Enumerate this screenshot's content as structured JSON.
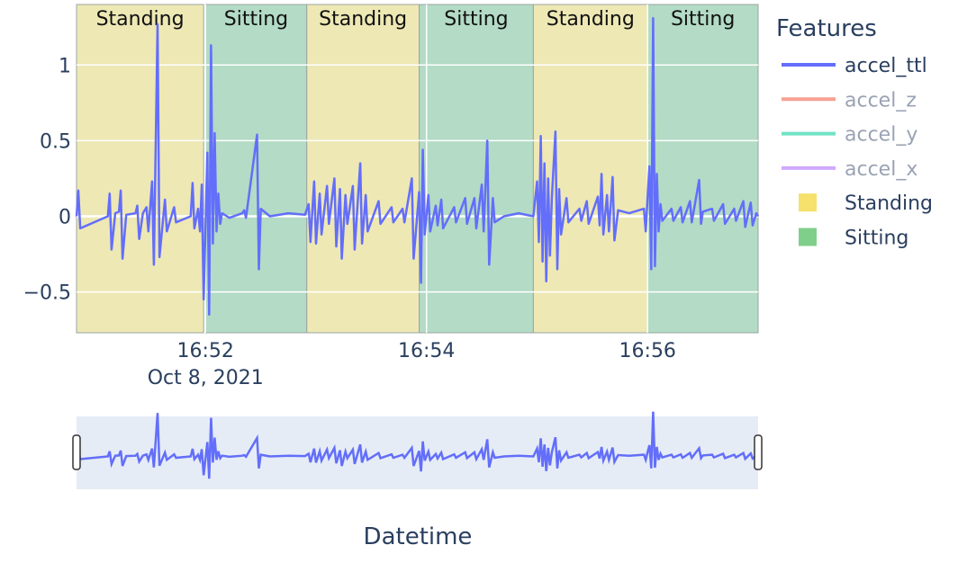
{
  "chart_data": {
    "type": "line",
    "x_unit": "datetime",
    "xlim": [
      "2021-10-08 16:50:50",
      "2021-10-08 16:57:00"
    ],
    "ylim": [
      -0.77,
      1.4
    ],
    "y_ticks": [
      {
        "value": -0.5,
        "label": "−0.5"
      },
      {
        "value": 0,
        "label": "0"
      },
      {
        "value": 0.5,
        "label": "0.5"
      },
      {
        "value": 1,
        "label": "1"
      }
    ],
    "x_ticks": [
      {
        "value": "2021-10-08 16:52:00",
        "label": "16:52",
        "sublabel": "Oct 8, 2021"
      },
      {
        "value": "2021-10-08 16:54:00",
        "label": "16:54",
        "sublabel": ""
      },
      {
        "value": "2021-10-08 16:56:00",
        "label": "16:56",
        "sublabel": ""
      }
    ],
    "xlabel": "Datetime",
    "ylabel": "",
    "grid": true,
    "legend_position": "right",
    "legend_title": "Features",
    "legend": [
      {
        "name": "accel_ttl",
        "kind": "line",
        "color": "#636efa",
        "visible": true
      },
      {
        "name": "accel_z",
        "kind": "line",
        "color": "#ef553b",
        "visible": false
      },
      {
        "name": "accel_y",
        "kind": "line",
        "color": "#00cc96",
        "visible": false
      },
      {
        "name": "accel_x",
        "kind": "line",
        "color": "#ab63fa",
        "visible": false
      },
      {
        "name": "Standing",
        "kind": "box",
        "color": "#f5e16c",
        "visible": true
      },
      {
        "name": "Sitting",
        "kind": "box",
        "color": "#7fcf8a",
        "visible": true
      }
    ],
    "regions": [
      {
        "label": "Standing",
        "start": "2021-10-08 16:50:50",
        "end": "2021-10-08 16:51:59",
        "color": "#eee8b5"
      },
      {
        "label": "Sitting",
        "start": "2021-10-08 16:52:00",
        "end": "2021-10-08 16:52:55",
        "color": "#b3dbc5"
      },
      {
        "label": "Standing",
        "start": "2021-10-08 16:52:55",
        "end": "2021-10-08 16:53:56",
        "color": "#eee8b5"
      },
      {
        "label": "Sitting",
        "start": "2021-10-08 16:53:56",
        "end": "2021-10-08 16:54:58",
        "color": "#b3dbc5"
      },
      {
        "label": "Standing",
        "start": "2021-10-08 16:54:58",
        "end": "2021-10-08 16:56:00",
        "color": "#eee8b5"
      },
      {
        "label": "Sitting",
        "start": "2021-10-08 16:56:00",
        "end": "2021-10-08 16:57:00",
        "color": "#b3dbc5"
      }
    ],
    "series": [
      {
        "name": "accel_ttl",
        "color": "#636efa",
        "points": [
          [
            "2021-10-08 16:50:50",
            0.0
          ],
          [
            "2021-10-08 16:50:51",
            0.17
          ],
          [
            "2021-10-08 16:50:52",
            -0.08
          ],
          [
            "2021-10-08 16:51:07",
            0.0
          ],
          [
            "2021-10-08 16:51:08",
            0.15
          ],
          [
            "2021-10-08 16:51:09",
            -0.22
          ],
          [
            "2021-10-08 16:51:11",
            0.02
          ],
          [
            "2021-10-08 16:51:13",
            0.03
          ],
          [
            "2021-10-08 16:51:14",
            0.17
          ],
          [
            "2021-10-08 16:51:15",
            -0.28
          ],
          [
            "2021-10-08 16:51:17",
            0.01
          ],
          [
            "2021-10-08 16:51:22",
            0.02
          ],
          [
            "2021-10-08 16:51:23",
            0.07
          ],
          [
            "2021-10-08 16:51:24",
            -0.15
          ],
          [
            "2021-10-08 16:51:26",
            0.02
          ],
          [
            "2021-10-08 16:51:28",
            0.06
          ],
          [
            "2021-10-08 16:51:29",
            -0.1
          ],
          [
            "2021-10-08 16:51:31",
            0.23
          ],
          [
            "2021-10-08 16:51:32",
            -0.32
          ],
          [
            "2021-10-08 16:51:34",
            1.27
          ],
          [
            "2021-10-08 16:51:35",
            -0.27
          ],
          [
            "2021-10-08 16:51:38",
            0.11
          ],
          [
            "2021-10-08 16:51:39",
            -0.1
          ],
          [
            "2021-10-08 16:51:43",
            0.06
          ],
          [
            "2021-10-08 16:51:44",
            -0.04
          ],
          [
            "2021-10-08 16:51:52",
            0.0
          ],
          [
            "2021-10-08 16:51:53",
            0.22
          ],
          [
            "2021-10-08 16:51:54",
            -0.08
          ],
          [
            "2021-10-08 16:51:56",
            0.05
          ],
          [
            "2021-10-08 16:51:57",
            -0.1
          ],
          [
            "2021-10-08 16:51:58",
            0.21
          ],
          [
            "2021-10-08 16:51:59",
            -0.55
          ],
          [
            "2021-10-08 16:52:01",
            0.42
          ],
          [
            "2021-10-08 16:52:02",
            -0.65
          ],
          [
            "2021-10-08 16:52:03",
            1.13
          ],
          [
            "2021-10-08 16:52:04",
            -0.18
          ],
          [
            "2021-10-08 16:52:05",
            0.55
          ],
          [
            "2021-10-08 16:52:06",
            -0.1
          ],
          [
            "2021-10-08 16:52:07",
            0.15
          ],
          [
            "2021-10-08 16:52:08",
            -0.05
          ],
          [
            "2021-10-08 16:52:09",
            0.02
          ],
          [
            "2021-10-08 16:52:13",
            -0.01
          ],
          [
            "2021-10-08 16:52:20",
            0.02
          ],
          [
            "2021-10-08 16:52:21",
            0.04
          ],
          [
            "2021-10-08 16:52:22",
            -0.01
          ],
          [
            "2021-10-08 16:52:28",
            0.54
          ],
          [
            "2021-10-08 16:52:29",
            -0.35
          ],
          [
            "2021-10-08 16:52:30",
            0.05
          ],
          [
            "2021-10-08 16:52:35",
            0.0
          ],
          [
            "2021-10-08 16:52:45",
            0.02
          ],
          [
            "2021-10-08 16:52:54",
            0.01
          ],
          [
            "2021-10-08 16:52:56",
            0.08
          ],
          [
            "2021-10-08 16:52:57",
            -0.17
          ],
          [
            "2021-10-08 16:52:59",
            0.23
          ],
          [
            "2021-10-08 16:53:00",
            -0.18
          ],
          [
            "2021-10-08 16:53:02",
            0.15
          ],
          [
            "2021-10-08 16:53:03",
            -0.12
          ],
          [
            "2021-10-08 16:53:06",
            0.2
          ],
          [
            "2021-10-08 16:53:07",
            -0.05
          ],
          [
            "2021-10-08 16:53:10",
            0.25
          ],
          [
            "2021-10-08 16:53:11",
            -0.2
          ],
          [
            "2021-10-08 16:53:13",
            0.18
          ],
          [
            "2021-10-08 16:53:14",
            -0.28
          ],
          [
            "2021-10-08 16:53:16",
            0.14
          ],
          [
            "2021-10-08 16:53:17",
            -0.05
          ],
          [
            "2021-10-08 16:53:20",
            0.2
          ],
          [
            "2021-10-08 16:53:21",
            -0.22
          ],
          [
            "2021-10-08 16:53:24",
            0.35
          ],
          [
            "2021-10-08 16:53:25",
            -0.18
          ],
          [
            "2021-10-08 16:53:27",
            0.14
          ],
          [
            "2021-10-08 16:53:28",
            -0.1
          ],
          [
            "2021-10-08 16:53:34",
            0.1
          ],
          [
            "2021-10-08 16:53:35",
            -0.05
          ],
          [
            "2021-10-08 16:53:41",
            0.06
          ],
          [
            "2021-10-08 16:53:42",
            -0.04
          ],
          [
            "2021-10-08 16:53:47",
            0.05
          ],
          [
            "2021-10-08 16:53:48",
            -0.04
          ],
          [
            "2021-10-08 16:53:52",
            0.25
          ],
          [
            "2021-10-08 16:53:53",
            -0.28
          ],
          [
            "2021-10-08 16:53:56",
            0.16
          ],
          [
            "2021-10-08 16:53:57",
            -0.44
          ],
          [
            "2021-10-08 16:53:58",
            0.44
          ],
          [
            "2021-10-08 16:53:59",
            -0.12
          ],
          [
            "2021-10-08 16:54:01",
            0.14
          ],
          [
            "2021-10-08 16:54:02",
            -0.1
          ],
          [
            "2021-10-08 16:54:05",
            0.07
          ],
          [
            "2021-10-08 16:54:06",
            -0.06
          ],
          [
            "2021-10-08 16:54:08",
            0.11
          ],
          [
            "2021-10-08 16:54:09",
            -0.08
          ],
          [
            "2021-10-08 16:54:15",
            0.06
          ],
          [
            "2021-10-08 16:54:16",
            -0.04
          ],
          [
            "2021-10-08 16:54:21",
            0.12
          ],
          [
            "2021-10-08 16:54:22",
            -0.05
          ],
          [
            "2021-10-08 16:54:26",
            0.12
          ],
          [
            "2021-10-08 16:54:27",
            -0.08
          ],
          [
            "2021-10-08 16:54:30",
            0.21
          ],
          [
            "2021-10-08 16:54:31",
            -0.1
          ],
          [
            "2021-10-08 16:54:33",
            0.5
          ],
          [
            "2021-10-08 16:54:34",
            -0.32
          ],
          [
            "2021-10-08 16:54:36",
            0.12
          ],
          [
            "2021-10-08 16:54:37",
            -0.04
          ],
          [
            "2021-10-08 16:54:42",
            0.0
          ],
          [
            "2021-10-08 16:54:50",
            0.02
          ],
          [
            "2021-10-08 16:54:58",
            0.0
          ],
          [
            "2021-10-08 16:55:00",
            0.23
          ],
          [
            "2021-10-08 16:55:01",
            -0.17
          ],
          [
            "2021-10-08 16:55:02",
            0.53
          ],
          [
            "2021-10-08 16:55:03",
            -0.3
          ],
          [
            "2021-10-08 16:55:04",
            0.35
          ],
          [
            "2021-10-08 16:55:05",
            -0.43
          ],
          [
            "2021-10-08 16:55:06",
            0.25
          ],
          [
            "2021-10-08 16:55:07",
            -0.26
          ],
          [
            "2021-10-08 16:55:08",
            0.12
          ],
          [
            "2021-10-08 16:55:10",
            0.56
          ],
          [
            "2021-10-08 16:55:11",
            -0.35
          ],
          [
            "2021-10-08 16:55:12",
            0.18
          ],
          [
            "2021-10-08 16:55:13",
            -0.12
          ],
          [
            "2021-10-08 16:55:16",
            0.12
          ],
          [
            "2021-10-08 16:55:17",
            -0.04
          ],
          [
            "2021-10-08 16:55:23",
            0.05
          ],
          [
            "2021-10-08 16:55:24",
            -0.03
          ],
          [
            "2021-10-08 16:55:27",
            0.1
          ],
          [
            "2021-10-08 16:55:28",
            -0.05
          ],
          [
            "2021-10-08 16:55:33",
            0.13
          ],
          [
            "2021-10-08 16:55:34",
            -0.06
          ],
          [
            "2021-10-08 16:55:35",
            0.28
          ],
          [
            "2021-10-08 16:55:36",
            -0.12
          ],
          [
            "2021-10-08 16:55:38",
            0.14
          ],
          [
            "2021-10-08 16:55:39",
            -0.1
          ],
          [
            "2021-10-08 16:55:41",
            0.26
          ],
          [
            "2021-10-08 16:55:42",
            -0.16
          ],
          [
            "2021-10-08 16:55:44",
            0.04
          ],
          [
            "2021-10-08 16:55:50",
            0.02
          ],
          [
            "2021-10-08 16:55:58",
            0.05
          ],
          [
            "2021-10-08 16:55:59",
            -0.1
          ],
          [
            "2021-10-08 16:56:00",
            0.12
          ],
          [
            "2021-10-08 16:56:01",
            0.33
          ],
          [
            "2021-10-08 16:56:02",
            -0.35
          ],
          [
            "2021-10-08 16:56:03",
            1.31
          ],
          [
            "2021-10-08 16:56:04",
            -0.33
          ],
          [
            "2021-10-08 16:56:05",
            0.28
          ],
          [
            "2021-10-08 16:56:06",
            -0.1
          ],
          [
            "2021-10-08 16:56:07",
            0.08
          ],
          [
            "2021-10-08 16:56:08",
            -0.03
          ],
          [
            "2021-10-08 16:56:13",
            0.05
          ],
          [
            "2021-10-08 16:56:14",
            -0.03
          ],
          [
            "2021-10-08 16:56:18",
            0.06
          ],
          [
            "2021-10-08 16:56:19",
            -0.04
          ],
          [
            "2021-10-08 16:56:23",
            0.1
          ],
          [
            "2021-10-08 16:56:24",
            -0.04
          ],
          [
            "2021-10-08 16:56:28",
            0.24
          ],
          [
            "2021-10-08 16:56:29",
            -0.05
          ],
          [
            "2021-10-08 16:56:30",
            0.03
          ],
          [
            "2021-10-08 16:56:35",
            0.05
          ],
          [
            "2021-10-08 16:56:36",
            -0.03
          ],
          [
            "2021-10-08 16:56:41",
            0.08
          ],
          [
            "2021-10-08 16:56:42",
            -0.05
          ],
          [
            "2021-10-08 16:56:47",
            0.05
          ],
          [
            "2021-10-08 16:56:48",
            -0.03
          ],
          [
            "2021-10-08 16:56:52",
            0.1
          ],
          [
            "2021-10-08 16:56:53",
            -0.07
          ],
          [
            "2021-10-08 16:56:56",
            0.09
          ],
          [
            "2021-10-08 16:56:57",
            -0.06
          ],
          [
            "2021-10-08 16:56:59",
            0.02
          ],
          [
            "2021-10-08 16:57:00",
            0.0
          ]
        ]
      }
    ]
  }
}
